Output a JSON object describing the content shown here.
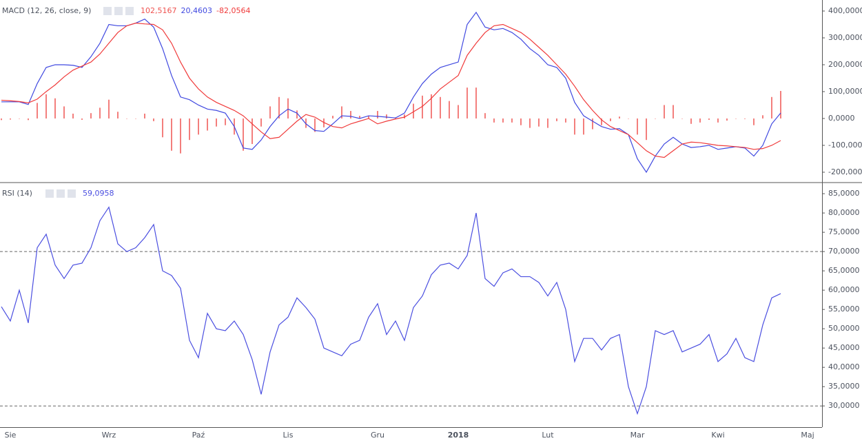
{
  "chart_data": [
    {
      "type": "line",
      "title": "MACD (12, 26, close, 9)",
      "ylim": [
        -236,
        441
      ],
      "yticks": [
        {
          "value": 400,
          "label": "400,0000"
        },
        {
          "value": 300,
          "label": "300,0000"
        },
        {
          "value": 200,
          "label": "200,0000"
        },
        {
          "value": 100,
          "label": "100,0000"
        },
        {
          "value": 0,
          "label": "0,0000"
        },
        {
          "value": -100,
          "label": "-100,0000"
        },
        {
          "value": -200,
          "label": "-200,0000"
        }
      ],
      "series": [
        {
          "type": "bar",
          "color": "#ef5350",
          "last_value_label": "102,5167",
          "values": [
            -6,
            -4,
            -1,
            -6,
            58,
            90,
            75,
            45,
            18,
            -5,
            20,
            40,
            70,
            25,
            0,
            0,
            18,
            -10,
            -70,
            -120,
            -130,
            -80,
            -60,
            -45,
            -30,
            -25,
            -60,
            -120,
            -95,
            -30,
            45,
            80,
            75,
            30,
            -35,
            -50,
            -33,
            10,
            45,
            28,
            10,
            10,
            28,
            15,
            4,
            15,
            55,
            85,
            90,
            80,
            65,
            50,
            115,
            115,
            20,
            -15,
            -15,
            -15,
            -25,
            -35,
            -30,
            -35,
            -10,
            -15,
            -60,
            -60,
            -40,
            -25,
            -10,
            7,
            0,
            -60,
            -80,
            0,
            50,
            50,
            0,
            -20,
            -15,
            -5,
            -15,
            -8,
            0,
            -2,
            -25,
            12,
            80,
            102.5167
          ]
        },
        {
          "type": "line",
          "color": "#3f48e0",
          "last_value_label": "20,4603",
          "values": [
            62,
            62,
            62,
            52,
            130,
            190,
            200,
            200,
            198,
            190,
            230,
            280,
            350,
            345,
            345,
            355,
            370,
            340,
            260,
            160,
            80,
            70,
            50,
            35,
            30,
            20,
            -30,
            -110,
            -115,
            -80,
            -30,
            10,
            35,
            20,
            -20,
            -45,
            -48,
            -20,
            10,
            8,
            0,
            10,
            8,
            5,
            2,
            20,
            80,
            130,
            165,
            190,
            200,
            210,
            350,
            395,
            340,
            330,
            335,
            320,
            295,
            260,
            235,
            200,
            190,
            150,
            60,
            10,
            -10,
            -30,
            -40,
            -38,
            -60,
            -150,
            -200,
            -140,
            -95,
            -70,
            -95,
            -108,
            -105,
            -100,
            -115,
            -110,
            -105,
            -110,
            -140,
            -100,
            -20,
            20.4603
          ]
        },
        {
          "type": "line",
          "color": "#f03a3a",
          "last_value_label": "-82,0564",
          "values": [
            68,
            66,
            63,
            58,
            72,
            100,
            125,
            155,
            180,
            195,
            210,
            240,
            280,
            320,
            345,
            355,
            352,
            350,
            330,
            280,
            210,
            150,
            110,
            80,
            60,
            45,
            30,
            10,
            -20,
            -50,
            -75,
            -70,
            -40,
            -10,
            15,
            5,
            -15,
            -30,
            -35,
            -20,
            -10,
            0,
            -20,
            -10,
            -2,
            5,
            25,
            45,
            75,
            110,
            135,
            160,
            235,
            280,
            320,
            345,
            350,
            335,
            320,
            295,
            265,
            235,
            200,
            165,
            120,
            70,
            30,
            -5,
            -30,
            -45,
            -60,
            -90,
            -120,
            -140,
            -145,
            -120,
            -95,
            -88,
            -90,
            -95,
            -100,
            -102,
            -105,
            -108,
            -115,
            -112,
            -100,
            -82.0564
          ]
        }
      ]
    },
    {
      "type": "line",
      "title": "RSI (14)",
      "ylim": [
        24.5,
        87.7
      ],
      "yticks": [
        {
          "value": 85,
          "label": "85,0000"
        },
        {
          "value": 80,
          "label": "80,0000"
        },
        {
          "value": 75,
          "label": "75,0000"
        },
        {
          "value": 70,
          "label": "70,0000"
        },
        {
          "value": 65,
          "label": "65,0000"
        },
        {
          "value": 60,
          "label": "60,0000"
        },
        {
          "value": 55,
          "label": "55,0000"
        },
        {
          "value": 50,
          "label": "50,0000"
        },
        {
          "value": 45,
          "label": "45,0000"
        },
        {
          "value": 40,
          "label": "40,0000"
        },
        {
          "value": 35,
          "label": "35,0000"
        },
        {
          "value": 30,
          "label": "30,0000"
        }
      ],
      "bands": [
        70,
        30
      ],
      "categories": [
        null,
        "Sie",
        null,
        null,
        null,
        null,
        null,
        null,
        null,
        null,
        null,
        null,
        "Wrz",
        null,
        null,
        null,
        null,
        null,
        null,
        null,
        null,
        null,
        "Paź",
        null,
        null,
        null,
        null,
        null,
        null,
        null,
        null,
        null,
        "Lis",
        null,
        null,
        null,
        null,
        null,
        null,
        null,
        null,
        null,
        "Gru",
        null,
        null,
        null,
        null,
        null,
        null,
        null,
        null,
        "2018",
        null,
        null,
        null,
        null,
        null,
        null,
        null,
        null,
        null,
        "Lut",
        null,
        null,
        null,
        null,
        null,
        null,
        null,
        null,
        null,
        "Mar",
        null,
        null,
        null,
        null,
        null,
        null,
        null,
        null,
        "Kwi",
        null,
        null,
        null,
        null,
        null,
        null,
        null,
        null,
        null,
        "Maj"
      ],
      "series": [
        {
          "type": "line",
          "color": "#4a4ee0",
          "last_value_label": "59,0958",
          "values": [
            55.7,
            52,
            60,
            51.5,
            71,
            74.5,
            66.5,
            63,
            66.5,
            67,
            71,
            78,
            81.5,
            72,
            70,
            71,
            73.6,
            77,
            65,
            63.8,
            60.5,
            47,
            42.5,
            54,
            50,
            49.5,
            52,
            48.5,
            42,
            33,
            44,
            51,
            53,
            58,
            55.5,
            52.5,
            45,
            44,
            43,
            46,
            47,
            53,
            56.5,
            48.5,
            52,
            47,
            55.5,
            58.5,
            64,
            66.5,
            67,
            65.5,
            69,
            80,
            63,
            61,
            64.5,
            65.5,
            63.5,
            63.5,
            62,
            58.5,
            62,
            55,
            41.5,
            47.5,
            47.5,
            44.5,
            47.5,
            48.5,
            35,
            28,
            35,
            49.5,
            48.5,
            49.5,
            44,
            45,
            46,
            48.5,
            41.5,
            43.5,
            47.5,
            42.5,
            41.5,
            51,
            58,
            59.0958,
            null,
            null,
            null
          ]
        }
      ]
    }
  ]
}
